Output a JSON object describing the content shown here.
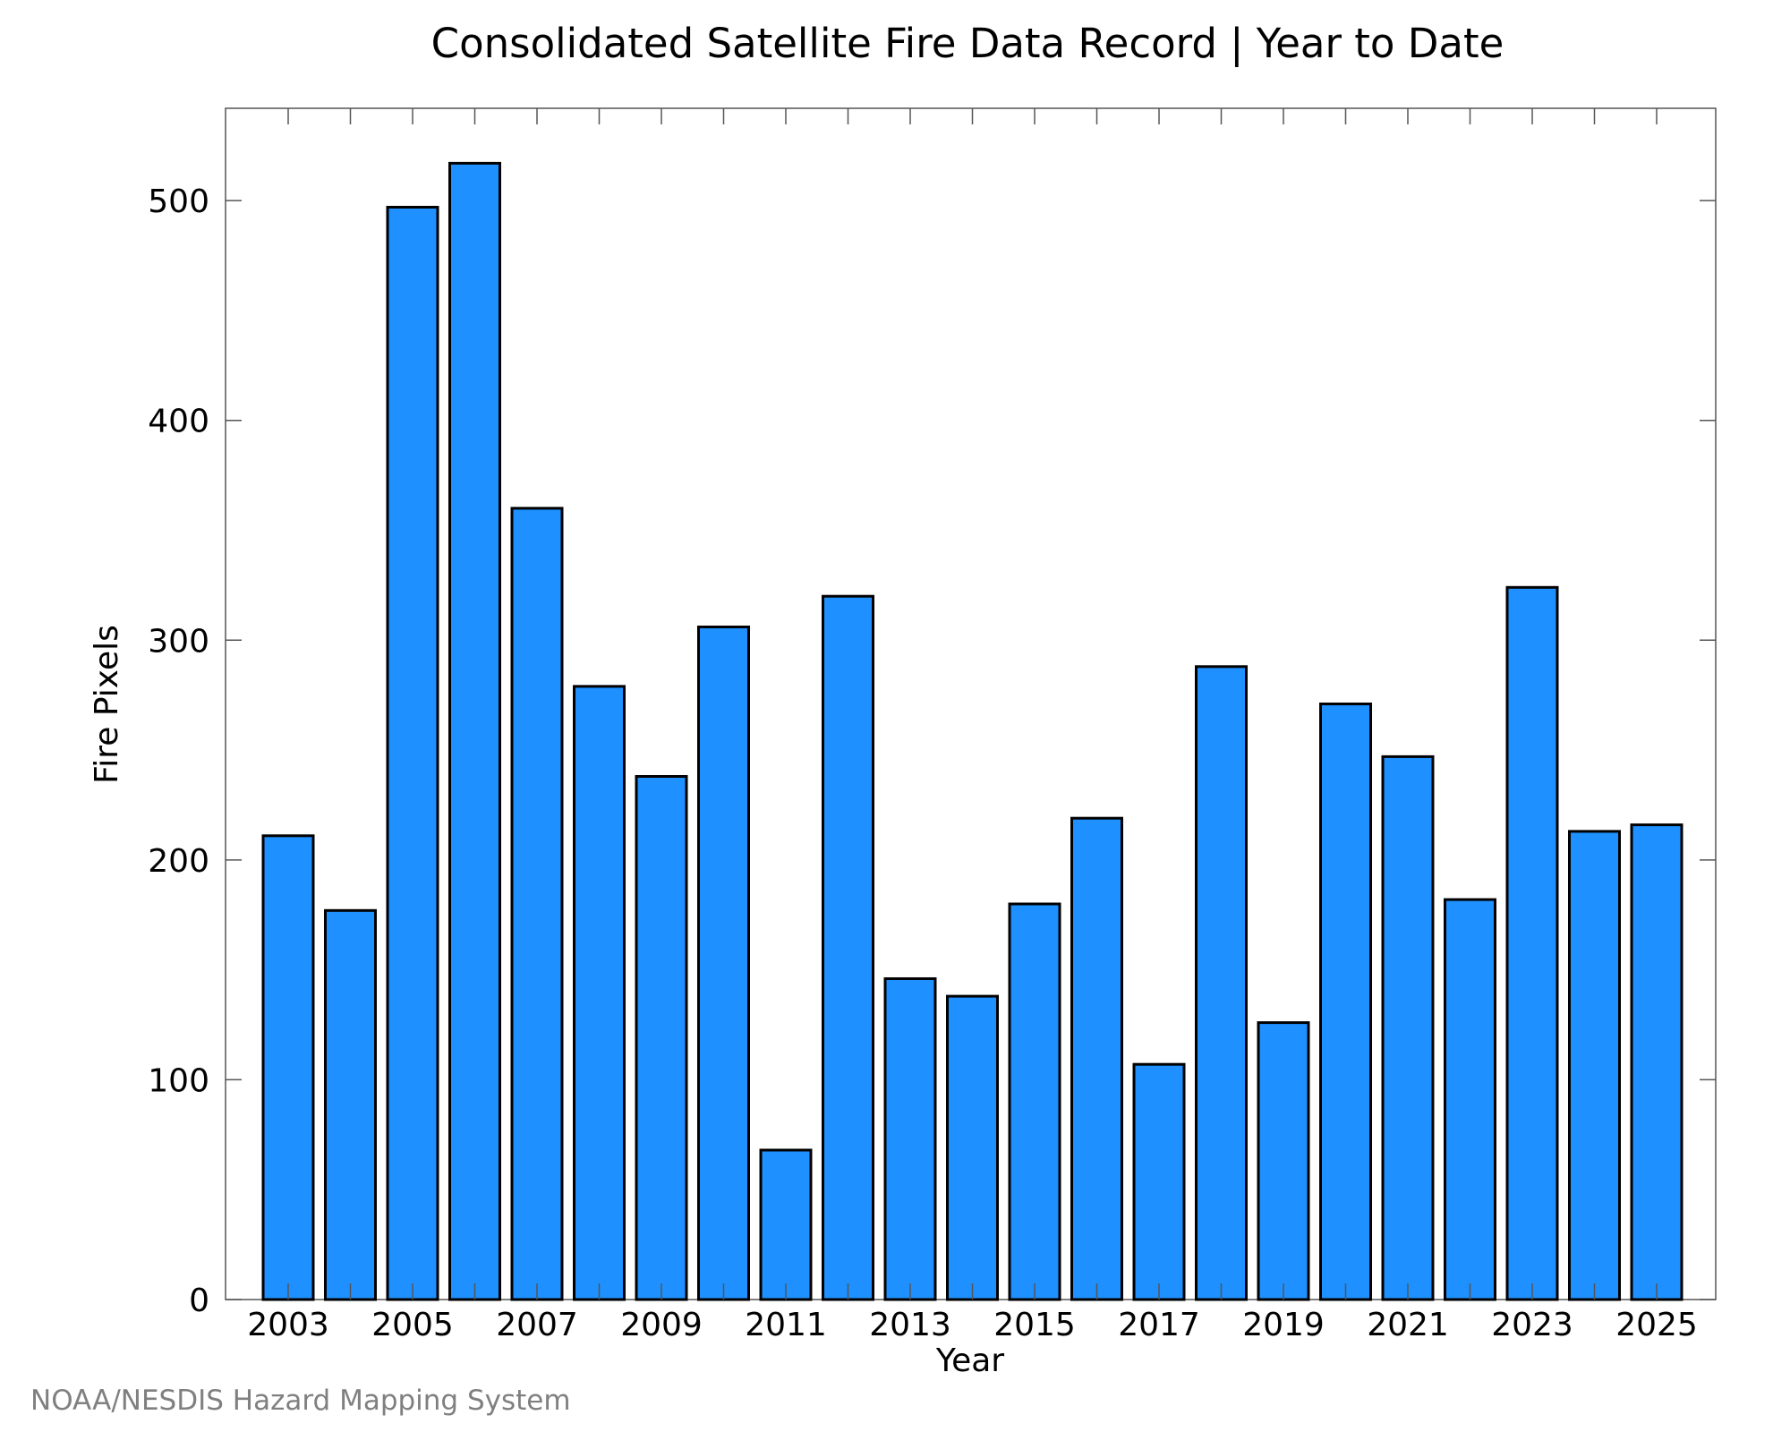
{
  "chart_data": {
    "type": "bar",
    "title": "Consolidated Satellite Fire Data Record | Year to Date",
    "xlabel": "Year",
    "ylabel": "Fire Pixels",
    "categories": [
      "2003",
      "2004",
      "2005",
      "2006",
      "2007",
      "2008",
      "2009",
      "2010",
      "2011",
      "2012",
      "2013",
      "2014",
      "2015",
      "2016",
      "2017",
      "2018",
      "2019",
      "2020",
      "2021",
      "2022",
      "2023",
      "2024",
      "2025"
    ],
    "values": [
      211,
      177,
      497,
      517,
      360,
      279,
      238,
      306,
      68,
      320,
      146,
      138,
      180,
      219,
      107,
      288,
      126,
      271,
      247,
      182,
      324,
      213,
      216
    ],
    "ylim": [
      0,
      542
    ],
    "yticks": [
      0,
      100,
      200,
      300,
      400,
      500
    ],
    "xtick_labels": [
      "2003",
      "2005",
      "2007",
      "2009",
      "2011",
      "2013",
      "2015",
      "2017",
      "2019",
      "2021",
      "2023",
      "2025"
    ],
    "bar_color": "#1e90ff",
    "grid": false,
    "credit": "NOAA/NESDIS Hazard Mapping System"
  }
}
